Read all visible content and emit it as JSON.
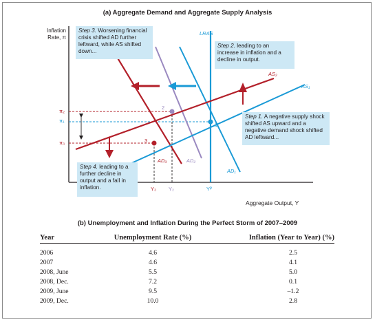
{
  "chart_data": {
    "type": "diagram",
    "title": "(a) Aggregate Demand and Aggregate Supply Analysis",
    "ylabel": "Inflation\nRate, π",
    "xlabel": "Aggregate Output, Y",
    "curves": {
      "lras": "LRAS",
      "as1": "AS₁",
      "as2": "AS₂",
      "ad1": "AD₁",
      "ad2": "AD₂",
      "ad3": "AD₃"
    },
    "points": [
      "1",
      "2",
      "3"
    ],
    "y_ticks": [
      "π₂",
      "π₁",
      "π₃"
    ],
    "x_ticks": [
      "Y₃",
      "Y₂",
      "Yᴾ"
    ],
    "annotations": {
      "step1": {
        "lead": "Step 1.",
        "text": "A negative supply shock shifted AS upward and a negative demand shock shifted AD leftward..."
      },
      "step2": {
        "lead": "Step 2.",
        "text": "leading to an increase in inflation and a decline in output."
      },
      "step3": {
        "lead": "Step 3.",
        "text": "Worsening financial crisis shifted AD further leftward, while AS shifted down..."
      },
      "step4": {
        "lead": "Step 4.",
        "text": "leading to a further decline in output and a fall in inflation."
      }
    },
    "colors": {
      "as_red": "#b3202a",
      "blue": "#1a9ad6",
      "ad2_purple": "#9a89c0",
      "note_bg": "#cde8f5"
    }
  },
  "table": {
    "title": "(b) Unemployment and Inflation During the Perfect Storm of 2007–2009",
    "headers": [
      "Year",
      "Unemployment Rate (%)",
      "Inflation (Year to Year) (%)"
    ],
    "rows": [
      [
        "2006",
        "4.6",
        "2.5"
      ],
      [
        "2007",
        "4.6",
        "4.1"
      ],
      [
        "2008, June",
        "5.5",
        "5.0"
      ],
      [
        "2008, Dec.",
        "7.2",
        "0.1"
      ],
      [
        "2009, June",
        "9.5",
        "–1.2"
      ],
      [
        "2009, Dec.",
        "10.0",
        "2.8"
      ]
    ]
  }
}
